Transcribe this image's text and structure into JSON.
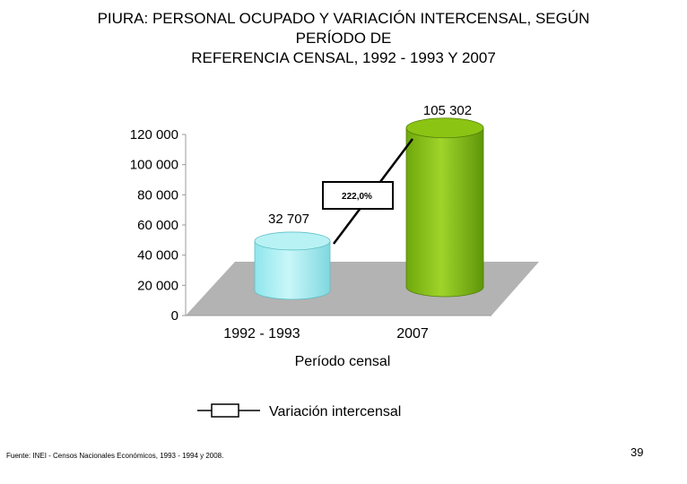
{
  "header": {
    "title_lines": [
      "PIURA: PERSONAL OCUPADO Y VARIACIÓN INTERCENSAL, SEGÚN",
      "PERÍODO DE",
      "REFERENCIA CENSAL, 1992 - 1993 Y 2007"
    ]
  },
  "chart_data": {
    "type": "bar",
    "categories": [
      "1992 - 1993",
      "2007"
    ],
    "values": [
      32707,
      105302
    ],
    "value_labels": [
      "32 707",
      "105 302"
    ],
    "xlabel": "Período censal",
    "ylabel": "",
    "ylim": [
      0,
      120000
    ],
    "yticks": [
      0,
      20000,
      40000,
      60000,
      80000,
      100000,
      120000
    ],
    "ytick_labels": [
      "0",
      "20 000",
      "40 000",
      "60 000",
      "80 000",
      "100 000",
      "120 000"
    ],
    "bar_colors": [
      "#a8eef2",
      "#8cc414"
    ],
    "annotation": "222,0%",
    "legend": {
      "label": "Variación intercensal",
      "placement": "bottom"
    },
    "grid": false
  },
  "footer": {
    "source": "Fuente: INEI - Censos Nacionales Económicos, 1993 - 1994 y 2008.",
    "page_number": "39"
  }
}
